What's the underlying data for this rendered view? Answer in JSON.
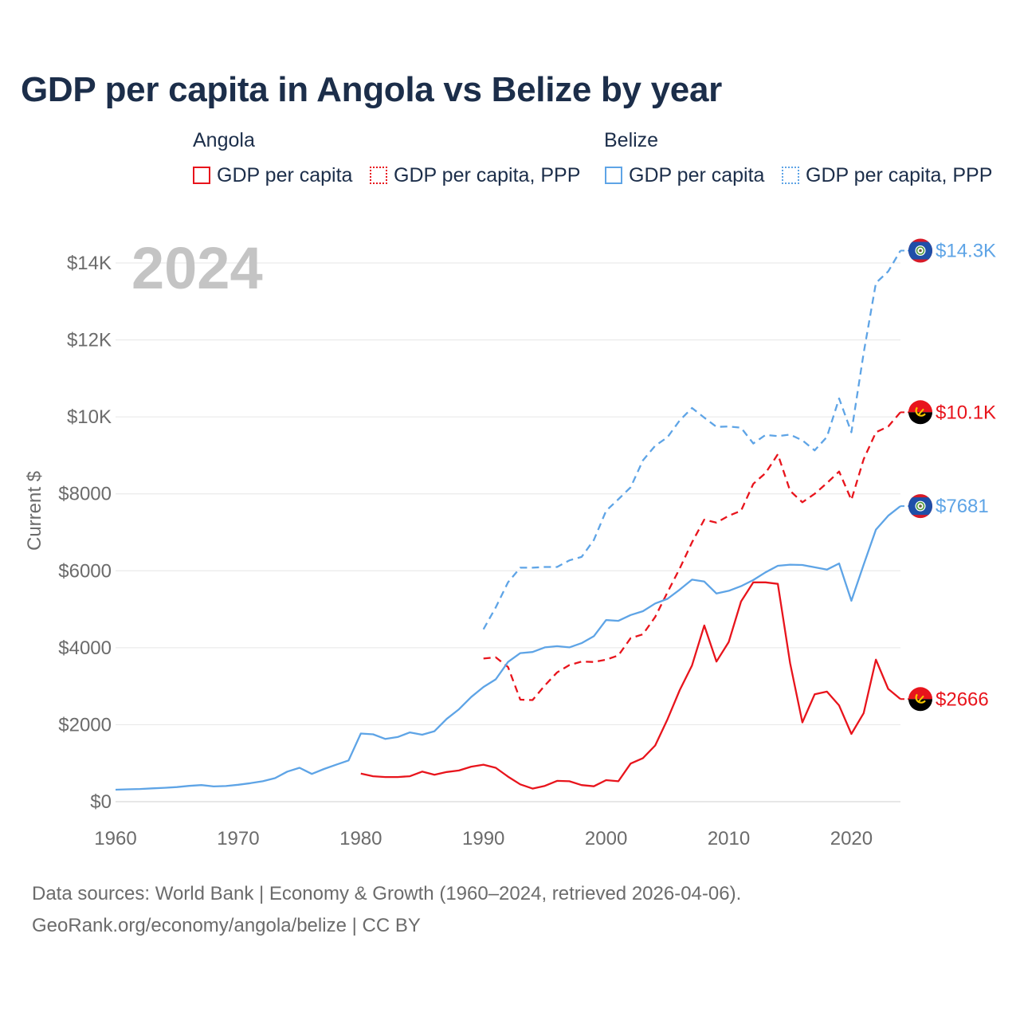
{
  "title": "GDP per capita in Angola vs Belize by year",
  "legend": {
    "groups": [
      {
        "country": "Angola",
        "items": [
          {
            "label": "GDP per capita",
            "color": "#e8141c",
            "style": "solid"
          },
          {
            "label": "GDP per capita, PPP",
            "color": "#e8141c",
            "style": "dotted"
          }
        ]
      },
      {
        "country": "Belize",
        "items": [
          {
            "label": "GDP per capita",
            "color": "#5ea4e6",
            "style": "solid"
          },
          {
            "label": "GDP per capita, PPP",
            "color": "#5ea4e6",
            "style": "dotted"
          }
        ]
      }
    ]
  },
  "year_label": "2024",
  "footer": {
    "line1": "Data sources: World Bank | Economy & Growth (1960–2024, retrieved 2026-04-06).",
    "line2": "GeoRank.org/economy/angola/belize | CC BY"
  },
  "chart_data": {
    "type": "line",
    "title": "GDP per capita in Angola vs Belize by year",
    "xlabel": "",
    "ylabel": "Current $",
    "xlim": [
      1960,
      2024
    ],
    "ylim": [
      0,
      14500
    ],
    "x_ticks": [
      1960,
      1970,
      1980,
      1990,
      2000,
      2010,
      2020
    ],
    "x_tick_labels": [
      "1960",
      "1970",
      "1980",
      "1990",
      "2000",
      "2010",
      "2020"
    ],
    "y_ticks": [
      0,
      2000,
      4000,
      6000,
      8000,
      10000,
      12000,
      14000
    ],
    "y_tick_labels": [
      "$0",
      "$2000",
      "$4000",
      "$6000",
      "$8000",
      "$10K",
      "$12K",
      "$14K"
    ],
    "grid": true,
    "series": [
      {
        "name": "Belize GDP per capita, PPP",
        "country": "Belize",
        "color": "#5ea4e6",
        "dash": "dashed",
        "flag": "belize",
        "end_label": "$14.3K",
        "x": [
          1990,
          1991,
          1992,
          1993,
          1994,
          1995,
          1996,
          1997,
          1998,
          1999,
          2000,
          2001,
          2002,
          2003,
          2004,
          2005,
          2006,
          2007,
          2008,
          2009,
          2010,
          2011,
          2012,
          2013,
          2014,
          2015,
          2016,
          2017,
          2018,
          2019,
          2020,
          2021,
          2022,
          2023,
          2024
        ],
        "values": [
          4480,
          5050,
          5700,
          6080,
          6080,
          6100,
          6100,
          6270,
          6360,
          6800,
          7560,
          7860,
          8170,
          8870,
          9250,
          9470,
          9910,
          10230,
          9980,
          9740,
          9750,
          9720,
          9310,
          9530,
          9500,
          9540,
          9390,
          9130,
          9480,
          10480,
          9600,
          11660,
          13480,
          13780,
          14320
        ]
      },
      {
        "name": "Angola GDP per capita, PPP",
        "country": "Angola",
        "color": "#e8141c",
        "dash": "dashed",
        "flag": "angola",
        "end_label": "$10.1K",
        "x": [
          1990,
          1991,
          1992,
          1993,
          1994,
          1995,
          1996,
          1997,
          1998,
          1999,
          2000,
          2001,
          2002,
          2003,
          2004,
          2005,
          2006,
          2007,
          2008,
          2009,
          2010,
          2011,
          2012,
          2013,
          2014,
          2015,
          2016,
          2017,
          2018,
          2019,
          2020,
          2021,
          2022,
          2023,
          2024
        ],
        "values": [
          3720,
          3750,
          3500,
          2650,
          2640,
          3020,
          3360,
          3550,
          3640,
          3630,
          3690,
          3800,
          4250,
          4350,
          4800,
          5440,
          6060,
          6740,
          7330,
          7250,
          7430,
          7560,
          8260,
          8540,
          9030,
          8080,
          7780,
          8000,
          8280,
          8580,
          7840,
          8900,
          9600,
          9750,
          10120
        ]
      },
      {
        "name": "Belize GDP per capita",
        "country": "Belize",
        "color": "#5ea4e6",
        "dash": "solid",
        "flag": "belize",
        "end_label": "$7681",
        "x": [
          1960,
          1961,
          1962,
          1963,
          1964,
          1965,
          1966,
          1967,
          1968,
          1969,
          1970,
          1971,
          1972,
          1973,
          1974,
          1975,
          1976,
          1977,
          1978,
          1979,
          1980,
          1981,
          1982,
          1983,
          1984,
          1985,
          1986,
          1987,
          1988,
          1989,
          1990,
          1991,
          1992,
          1993,
          1994,
          1995,
          1996,
          1997,
          1998,
          1999,
          2000,
          2001,
          2002,
          2003,
          2004,
          2005,
          2006,
          2007,
          2008,
          2009,
          2010,
          2011,
          2012,
          2013,
          2014,
          2015,
          2016,
          2017,
          2018,
          2019,
          2020,
          2021,
          2022,
          2023,
          2024
        ],
        "values": [
          310,
          320,
          330,
          345,
          360,
          380,
          410,
          430,
          395,
          405,
          440,
          480,
          530,
          610,
          780,
          880,
          720,
          850,
          960,
          1070,
          1770,
          1750,
          1630,
          1680,
          1800,
          1740,
          1830,
          2150,
          2400,
          2720,
          2980,
          3180,
          3630,
          3860,
          3890,
          4010,
          4040,
          4010,
          4120,
          4300,
          4720,
          4700,
          4850,
          4950,
          5150,
          5270,
          5510,
          5770,
          5720,
          5410,
          5480,
          5600,
          5760,
          5960,
          6130,
          6160,
          6150,
          6090,
          6030,
          6190,
          5220,
          6160,
          7070,
          7430,
          7681
        ]
      },
      {
        "name": "Angola GDP per capita",
        "country": "Angola",
        "color": "#e8141c",
        "dash": "solid",
        "flag": "angola",
        "end_label": "$2666",
        "x": [
          1980,
          1981,
          1982,
          1983,
          1984,
          1985,
          1986,
          1987,
          1988,
          1989,
          1990,
          1991,
          1992,
          1993,
          1994,
          1995,
          1996,
          1997,
          1998,
          1999,
          2000,
          2001,
          2002,
          2003,
          2004,
          2005,
          2006,
          2007,
          2008,
          2009,
          2010,
          2011,
          2012,
          2013,
          2014,
          2015,
          2016,
          2017,
          2018,
          2019,
          2020,
          2021,
          2022,
          2023,
          2024
        ],
        "values": [
          730,
          660,
          640,
          640,
          660,
          780,
          700,
          770,
          810,
          910,
          960,
          880,
          650,
          450,
          340,
          410,
          540,
          530,
          430,
          400,
          560,
          530,
          990,
          1130,
          1460,
          2140,
          2900,
          3540,
          4580,
          3640,
          4150,
          5200,
          5700,
          5700,
          5660,
          3600,
          2060,
          2790,
          2860,
          2500,
          1760,
          2300,
          3690,
          2930,
          2666
        ]
      }
    ]
  }
}
